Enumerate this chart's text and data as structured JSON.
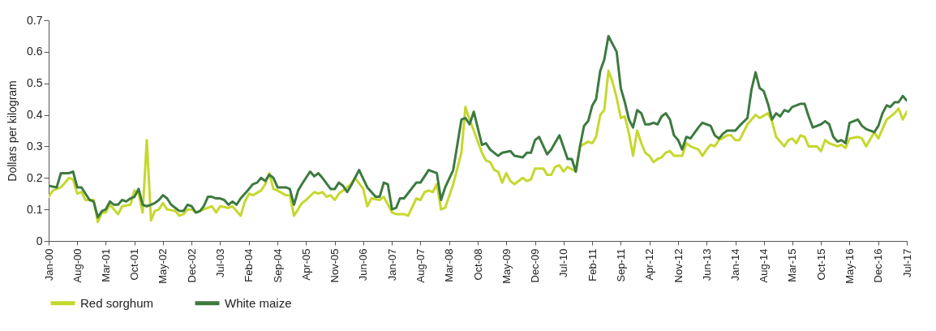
{
  "chart_data": {
    "type": "line",
    "ylabel": "Dollars per kilogram",
    "ylim": [
      0,
      0.7
    ],
    "yticks": [
      0,
      0.1,
      0.2,
      0.3,
      0.4,
      0.5,
      0.6,
      0.7
    ],
    "xlim": [
      "2000-01",
      "2017-07"
    ],
    "xticks": [
      {
        "value": "2000-01",
        "label": "Jan-00"
      },
      {
        "value": "2000-08",
        "label": "Aug-00"
      },
      {
        "value": "2001-03",
        "label": "Mar-01"
      },
      {
        "value": "2001-10",
        "label": "Oct-01"
      },
      {
        "value": "2002-05",
        "label": "May-02"
      },
      {
        "value": "2002-12",
        "label": "Dec-02"
      },
      {
        "value": "2003-07",
        "label": "Jul-03"
      },
      {
        "value": "2004-02",
        "label": "Feb-04"
      },
      {
        "value": "2004-09",
        "label": "Sep-04"
      },
      {
        "value": "2005-04",
        "label": "Apr-05"
      },
      {
        "value": "2005-11",
        "label": "Nov-05"
      },
      {
        "value": "2006-06",
        "label": "Jun-06"
      },
      {
        "value": "2007-01",
        "label": "Jan-07"
      },
      {
        "value": "2007-08",
        "label": "Aug-07"
      },
      {
        "value": "2008-03",
        "label": "Mar-08"
      },
      {
        "value": "2008-10",
        "label": "Oct-08"
      },
      {
        "value": "2009-05",
        "label": "May-09"
      },
      {
        "value": "2009-12",
        "label": "Dec-09"
      },
      {
        "value": "2010-07",
        "label": "Jul-10"
      },
      {
        "value": "2011-02",
        "label": "Feb-11"
      },
      {
        "value": "2011-09",
        "label": "Sep-11"
      },
      {
        "value": "2012-04",
        "label": "Apr-12"
      },
      {
        "value": "2012-11",
        "label": "Nov-12"
      },
      {
        "value": "2013-06",
        "label": "Jun-13"
      },
      {
        "value": "2014-01",
        "label": "Jan-14"
      },
      {
        "value": "2014-08",
        "label": "Aug-14"
      },
      {
        "value": "2015-03",
        "label": "Mar-15"
      },
      {
        "value": "2015-10",
        "label": "Oct-15"
      },
      {
        "value": "2016-05",
        "label": "May-16"
      },
      {
        "value": "2016-12",
        "label": "Dec-16"
      },
      {
        "value": "2017-07",
        "label": "Jul-17"
      }
    ],
    "grid": false,
    "legend": "bottom",
    "line_style": "solid",
    "marker": "none",
    "series": [
      {
        "name": "Red sorghum",
        "color": "#c5d82e",
        "x": [
          "2000-01",
          "2000-02",
          "2000-04",
          "2000-06",
          "2000-07",
          "2000-08",
          "2000-09",
          "2000-10",
          "2000-12",
          "2001-01",
          "2001-02",
          "2001-03",
          "2001-04",
          "2001-06",
          "2001-07",
          "2001-09",
          "2001-10",
          "2001-11",
          "2001-12",
          "2002-01",
          "2002-02",
          "2002-03",
          "2002-04",
          "2002-05",
          "2002-06",
          "2002-08",
          "2002-09",
          "2002-10",
          "2002-11",
          "2002-12",
          "2003-01",
          "2003-03",
          "2003-04",
          "2003-05",
          "2003-06",
          "2003-07",
          "2003-09",
          "2003-10",
          "2003-12",
          "2004-01",
          "2004-02",
          "2004-03",
          "2004-05",
          "2004-06",
          "2004-07",
          "2004-08",
          "2004-09",
          "2004-11",
          "2004-12",
          "2005-01",
          "2005-03",
          "2005-04",
          "2005-06",
          "2005-07",
          "2005-08",
          "2005-09",
          "2005-10",
          "2005-11",
          "2005-12",
          "2006-02",
          "2006-03",
          "2006-04",
          "2006-06",
          "2006-07",
          "2006-08",
          "2006-10",
          "2006-11",
          "2007-01",
          "2007-02",
          "2007-04",
          "2007-05",
          "2007-07",
          "2007-08",
          "2007-09",
          "2007-10",
          "2007-11",
          "2007-12",
          "2008-01",
          "2008-02",
          "2008-04",
          "2008-06",
          "2008-07",
          "2008-08",
          "2008-09",
          "2008-11",
          "2008-12",
          "2009-01",
          "2009-02",
          "2009-03",
          "2009-04",
          "2009-05",
          "2009-06",
          "2009-07",
          "2009-09",
          "2009-10",
          "2009-11",
          "2009-12",
          "2010-02",
          "2010-03",
          "2010-04",
          "2010-05",
          "2010-06",
          "2010-07",
          "2010-08",
          "2010-10",
          "2010-11",
          "2011-01",
          "2011-02",
          "2011-03",
          "2011-04",
          "2011-05",
          "2011-06",
          "2011-07",
          "2011-08",
          "2011-09",
          "2011-10",
          "2011-11",
          "2011-12",
          "2012-01",
          "2012-02",
          "2012-03",
          "2012-04",
          "2012-05",
          "2012-06",
          "2012-07",
          "2012-08",
          "2012-09",
          "2012-10",
          "2012-12",
          "2013-01",
          "2013-02",
          "2013-04",
          "2013-05",
          "2013-06",
          "2013-07",
          "2013-08",
          "2013-09",
          "2013-11",
          "2013-12",
          "2014-01",
          "2014-02",
          "2014-04",
          "2014-06",
          "2014-07",
          "2014-09",
          "2014-10",
          "2014-11",
          "2015-01",
          "2015-02",
          "2015-03",
          "2015-04",
          "2015-05",
          "2015-06",
          "2015-07",
          "2015-09",
          "2015-10",
          "2015-11",
          "2015-12",
          "2016-02",
          "2016-03",
          "2016-04",
          "2016-05",
          "2016-07",
          "2016-08",
          "2016-09",
          "2016-11",
          "2016-12",
          "2017-02",
          "2017-04",
          "2017-05",
          "2017-06",
          "2017-07"
        ],
        "values": [
          0.14,
          0.16,
          0.17,
          0.2,
          0.195,
          0.15,
          0.155,
          0.13,
          0.13,
          0.06,
          0.09,
          0.09,
          0.115,
          0.085,
          0.11,
          0.115,
          0.16,
          0.15,
          0.09,
          0.32,
          0.065,
          0.095,
          0.1,
          0.12,
          0.1,
          0.095,
          0.08,
          0.085,
          0.1,
          0.1,
          0.09,
          0.1,
          0.105,
          0.11,
          0.09,
          0.11,
          0.105,
          0.11,
          0.08,
          0.125,
          0.15,
          0.145,
          0.16,
          0.18,
          0.215,
          0.165,
          0.16,
          0.145,
          0.145,
          0.08,
          0.12,
          0.13,
          0.155,
          0.15,
          0.155,
          0.14,
          0.145,
          0.13,
          0.15,
          0.17,
          0.18,
          0.2,
          0.165,
          0.11,
          0.135,
          0.13,
          0.14,
          0.09,
          0.085,
          0.085,
          0.08,
          0.135,
          0.13,
          0.155,
          0.16,
          0.155,
          0.18,
          0.1,
          0.105,
          0.18,
          0.28,
          0.425,
          0.385,
          0.35,
          0.28,
          0.255,
          0.25,
          0.225,
          0.22,
          0.185,
          0.215,
          0.19,
          0.18,
          0.2,
          0.19,
          0.195,
          0.23,
          0.23,
          0.21,
          0.21,
          0.235,
          0.24,
          0.22,
          0.235,
          0.22,
          0.3,
          0.315,
          0.31,
          0.33,
          0.4,
          0.415,
          0.54,
          0.505,
          0.455,
          0.39,
          0.395,
          0.34,
          0.27,
          0.35,
          0.31,
          0.28,
          0.27,
          0.25,
          0.26,
          0.265,
          0.28,
          0.285,
          0.27,
          0.27,
          0.31,
          0.3,
          0.29,
          0.27,
          0.29,
          0.305,
          0.3,
          0.32,
          0.335,
          0.335,
          0.32,
          0.32,
          0.37,
          0.4,
          0.39,
          0.405,
          0.38,
          0.33,
          0.3,
          0.32,
          0.325,
          0.31,
          0.335,
          0.33,
          0.3,
          0.3,
          0.285,
          0.32,
          0.31,
          0.3,
          0.305,
          0.295,
          0.325,
          0.33,
          0.325,
          0.3,
          0.345,
          0.325,
          0.385,
          0.405,
          0.42,
          0.385,
          0.41
        ]
      },
      {
        "name": "White maize",
        "color": "#3d7a40",
        "x": [
          "2000-01",
          "2000-03",
          "2000-04",
          "2000-06",
          "2000-07",
          "2000-08",
          "2000-09",
          "2000-10",
          "2000-11",
          "2000-12",
          "2001-01",
          "2001-02",
          "2001-03",
          "2001-04",
          "2001-05",
          "2001-06",
          "2001-07",
          "2001-08",
          "2001-09",
          "2001-10",
          "2001-11",
          "2001-12",
          "2002-01",
          "2002-02",
          "2002-03",
          "2002-04",
          "2002-05",
          "2002-06",
          "2002-07",
          "2002-08",
          "2002-09",
          "2002-10",
          "2002-11",
          "2002-12",
          "2003-01",
          "2003-02",
          "2003-03",
          "2003-04",
          "2003-05",
          "2003-06",
          "2003-07",
          "2003-08",
          "2003-09",
          "2003-10",
          "2003-11",
          "2003-12",
          "2004-01",
          "2004-02",
          "2004-03",
          "2004-04",
          "2004-05",
          "2004-06",
          "2004-07",
          "2004-08",
          "2004-09",
          "2004-11",
          "2004-12",
          "2005-01",
          "2005-02",
          "2005-03",
          "2005-05",
          "2005-06",
          "2005-07",
          "2005-08",
          "2005-10",
          "2005-11",
          "2005-12",
          "2006-01",
          "2006-02",
          "2006-03",
          "2006-05",
          "2006-07",
          "2006-09",
          "2006-10",
          "2006-11",
          "2006-12",
          "2007-01",
          "2007-02",
          "2007-03",
          "2007-04",
          "2007-07",
          "2007-08",
          "2007-10",
          "2007-12",
          "2008-01",
          "2008-02",
          "2008-04",
          "2008-06",
          "2008-07",
          "2008-08",
          "2008-09",
          "2008-11",
          "2008-12",
          "2009-01",
          "2009-03",
          "2009-04",
          "2009-06",
          "2009-07",
          "2009-09",
          "2009-10",
          "2009-11",
          "2009-12",
          "2010-01",
          "2010-03",
          "2010-04",
          "2010-06",
          "2010-08",
          "2010-09",
          "2010-10",
          "2010-11",
          "2010-12",
          "2011-01",
          "2011-02",
          "2011-03",
          "2011-04",
          "2011-05",
          "2011-06",
          "2011-07",
          "2011-08",
          "2011-09",
          "2011-10",
          "2011-11",
          "2011-12",
          "2012-01",
          "2012-02",
          "2012-03",
          "2012-04",
          "2012-05",
          "2012-06",
          "2012-07",
          "2012-08",
          "2012-09",
          "2012-10",
          "2012-11",
          "2012-12",
          "2013-01",
          "2013-02",
          "2013-04",
          "2013-05",
          "2013-06",
          "2013-07",
          "2013-08",
          "2013-09",
          "2013-10",
          "2013-11",
          "2014-01",
          "2014-02",
          "2014-04",
          "2014-05",
          "2014-06",
          "2014-07",
          "2014-08",
          "2014-09",
          "2014-10",
          "2014-11",
          "2014-12",
          "2015-01",
          "2015-02",
          "2015-03",
          "2015-04",
          "2015-05",
          "2015-06",
          "2015-07",
          "2015-08",
          "2015-10",
          "2015-11",
          "2015-12",
          "2016-01",
          "2016-02",
          "2016-03",
          "2016-04",
          "2016-05",
          "2016-07",
          "2016-08",
          "2016-09",
          "2016-11",
          "2016-12",
          "2017-01",
          "2017-02",
          "2017-03",
          "2017-04",
          "2017-05",
          "2017-06",
          "2017-07"
        ],
        "values": [
          0.175,
          0.17,
          0.215,
          0.215,
          0.22,
          0.17,
          0.17,
          0.15,
          0.13,
          0.125,
          0.075,
          0.095,
          0.1,
          0.125,
          0.115,
          0.115,
          0.13,
          0.125,
          0.135,
          0.14,
          0.165,
          0.115,
          0.11,
          0.115,
          0.12,
          0.13,
          0.145,
          0.135,
          0.115,
          0.105,
          0.095,
          0.095,
          0.115,
          0.11,
          0.09,
          0.095,
          0.11,
          0.14,
          0.14,
          0.135,
          0.135,
          0.13,
          0.115,
          0.125,
          0.115,
          0.135,
          0.15,
          0.165,
          0.18,
          0.185,
          0.2,
          0.19,
          0.21,
          0.2,
          0.17,
          0.17,
          0.165,
          0.115,
          0.16,
          0.18,
          0.22,
          0.205,
          0.215,
          0.2,
          0.165,
          0.165,
          0.185,
          0.175,
          0.155,
          0.175,
          0.225,
          0.17,
          0.14,
          0.14,
          0.185,
          0.18,
          0.1,
          0.105,
          0.135,
          0.135,
          0.185,
          0.185,
          0.225,
          0.215,
          0.13,
          0.17,
          0.225,
          0.385,
          0.39,
          0.37,
          0.41,
          0.305,
          0.31,
          0.29,
          0.27,
          0.28,
          0.285,
          0.27,
          0.265,
          0.28,
          0.28,
          0.32,
          0.33,
          0.275,
          0.29,
          0.335,
          0.26,
          0.26,
          0.22,
          0.3,
          0.365,
          0.38,
          0.43,
          0.45,
          0.54,
          0.575,
          0.65,
          0.625,
          0.6,
          0.485,
          0.44,
          0.385,
          0.36,
          0.415,
          0.405,
          0.37,
          0.37,
          0.375,
          0.37,
          0.395,
          0.405,
          0.385,
          0.335,
          0.32,
          0.29,
          0.33,
          0.325,
          0.36,
          0.375,
          0.37,
          0.365,
          0.335,
          0.325,
          0.34,
          0.35,
          0.35,
          0.365,
          0.39,
          0.48,
          0.535,
          0.485,
          0.475,
          0.435,
          0.385,
          0.405,
          0.395,
          0.415,
          0.41,
          0.425,
          0.43,
          0.435,
          0.435,
          0.395,
          0.36,
          0.37,
          0.38,
          0.37,
          0.33,
          0.315,
          0.32,
          0.31,
          0.375,
          0.385,
          0.365,
          0.355,
          0.345,
          0.365,
          0.405,
          0.43,
          0.425,
          0.44,
          0.44,
          0.46,
          0.445
        ]
      }
    ]
  }
}
